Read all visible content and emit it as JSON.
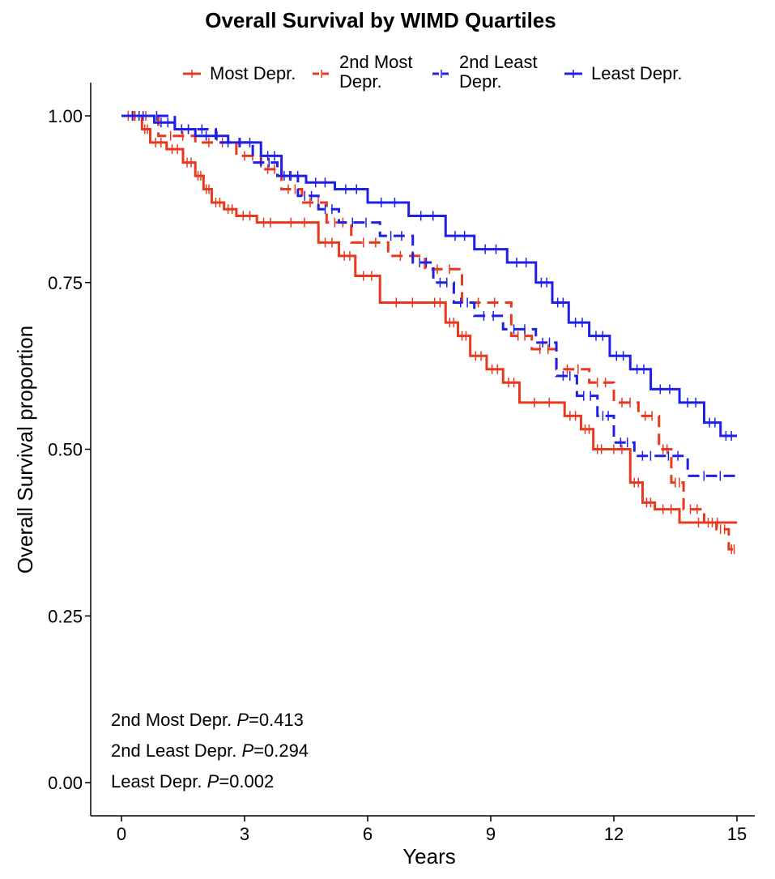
{
  "chart_data": {
    "type": "line",
    "title": "Overall Survival by WIMD Quartiles",
    "xlabel": "Years",
    "ylabel": "Overall Survival proportion",
    "xlim": [
      -1,
      15.5
    ],
    "ylim": [
      -0.05,
      1.05
    ],
    "x_ticks": [
      0,
      3,
      6,
      9,
      12,
      15
    ],
    "x_tick_labels": [
      "0",
      "3",
      "6",
      "9",
      "12",
      "15"
    ],
    "y_ticks": [
      0,
      0.25,
      0.5,
      0.75,
      1.0
    ],
    "y_tick_labels": [
      "0.00",
      "0.25",
      "0.50",
      "0.75",
      "1.00"
    ],
    "grid": false,
    "legend_position": "top",
    "legend": [
      {
        "label_lines": [
          "Most Depr."
        ],
        "color": "#E8391F",
        "dash": "solid"
      },
      {
        "label_lines": [
          "2nd Most",
          "Depr."
        ],
        "color": "#E8391F",
        "dash": "dashed"
      },
      {
        "label_lines": [
          "2nd Least",
          "Depr."
        ],
        "color": "#1F1FE8",
        "dash": "dashed"
      },
      {
        "label_lines": [
          "Least Depr."
        ],
        "color": "#1F1FE8",
        "dash": "solid"
      }
    ],
    "annotations": [
      {
        "prefix": "2nd Most Depr. ",
        "p_label": "P",
        "value": "=0.413"
      },
      {
        "prefix": "2nd Least Depr. ",
        "p_label": "P",
        "value": "=0.294"
      },
      {
        "prefix": "Least Depr. ",
        "p_label": "P",
        "value": "=0.002"
      }
    ],
    "series": [
      {
        "name": "Most Depr.",
        "color": "#E8391F",
        "dash": "solid",
        "x": [
          0,
          0.5,
          0.7,
          1.1,
          1.5,
          1.8,
          2.0,
          2.2,
          2.5,
          2.8,
          3.3,
          3.8,
          4.8,
          5.3,
          5.7,
          6.3,
          7.5,
          7.9,
          8.2,
          8.5,
          8.9,
          9.3,
          9.7,
          10.8,
          11.2,
          11.5,
          11.8,
          12.4,
          12.7,
          13.0,
          13.6,
          15.0
        ],
        "y": [
          1.0,
          0.98,
          0.96,
          0.95,
          0.93,
          0.91,
          0.89,
          0.87,
          0.86,
          0.85,
          0.84,
          0.84,
          0.81,
          0.79,
          0.76,
          0.72,
          0.72,
          0.69,
          0.67,
          0.64,
          0.62,
          0.6,
          0.57,
          0.55,
          0.53,
          0.5,
          0.5,
          0.45,
          0.42,
          0.41,
          0.39,
          0.39
        ]
      },
      {
        "name": "2nd Most Depr.",
        "color": "#E8391F",
        "dash": "dashed",
        "x": [
          0,
          0.9,
          1.8,
          2.8,
          3.4,
          3.9,
          4.4,
          5.0,
          5.6,
          6.5,
          7.4,
          8.3,
          9.5,
          10.0,
          10.6,
          11.4,
          12.0,
          12.6,
          13.1,
          13.4,
          13.7,
          14.2,
          14.5,
          14.8,
          15.0
        ],
        "y": [
          1.0,
          0.97,
          0.96,
          0.94,
          0.92,
          0.89,
          0.87,
          0.84,
          0.81,
          0.79,
          0.77,
          0.72,
          0.67,
          0.65,
          0.62,
          0.6,
          0.57,
          0.55,
          0.5,
          0.45,
          0.41,
          0.39,
          0.38,
          0.35,
          0.35
        ]
      },
      {
        "name": "2nd Least Depr.",
        "color": "#1F1FE8",
        "dash": "dashed",
        "x": [
          0,
          1.3,
          2.3,
          3.2,
          3.8,
          4.3,
          4.8,
          5.3,
          6.3,
          7.1,
          7.6,
          8.1,
          8.6,
          9.3,
          10.1,
          10.6,
          11.1,
          11.6,
          12.0,
          12.5,
          13.1,
          13.8,
          15.0
        ],
        "y": [
          1.0,
          0.98,
          0.96,
          0.93,
          0.91,
          0.88,
          0.86,
          0.84,
          0.82,
          0.78,
          0.75,
          0.72,
          0.7,
          0.68,
          0.66,
          0.61,
          0.58,
          0.55,
          0.51,
          0.49,
          0.49,
          0.46,
          0.46
        ]
      },
      {
        "name": "Least Depr.",
        "color": "#1F1FE8",
        "dash": "solid",
        "x": [
          0,
          0.8,
          1.3,
          1.8,
          2.6,
          3.4,
          3.9,
          4.5,
          5.2,
          6.0,
          7.0,
          7.9,
          8.6,
          9.4,
          10.1,
          10.5,
          10.9,
          11.4,
          11.9,
          12.4,
          12.9,
          13.6,
          14.2,
          14.6,
          15.0
        ],
        "y": [
          1.0,
          0.99,
          0.98,
          0.97,
          0.96,
          0.94,
          0.91,
          0.9,
          0.89,
          0.87,
          0.85,
          0.82,
          0.8,
          0.78,
          0.75,
          0.72,
          0.69,
          0.67,
          0.64,
          0.62,
          0.59,
          0.57,
          0.54,
          0.52,
          0.52
        ]
      }
    ]
  }
}
